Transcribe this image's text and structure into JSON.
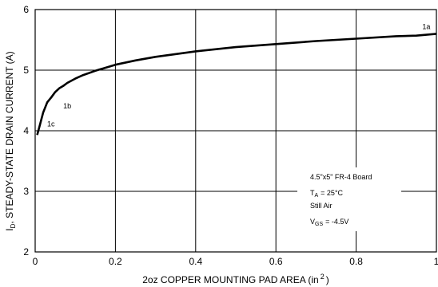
{
  "chart_data": {
    "type": "line",
    "title": "",
    "xlabel": "2oz COPPER MOUNTING PAD AREA (in",
    "xlabel_sup": "2",
    "xlabel_end": ")",
    "ylabel_pre": "I",
    "ylabel_sub": "D",
    "ylabel_rest": ", STEADY-STATE DRAIN CURRENT (A)",
    "xlim": [
      0,
      1
    ],
    "ylim": [
      2,
      6
    ],
    "x_ticks": [
      "0",
      "0.2",
      "0.4",
      "0.6",
      "0.8",
      "1"
    ],
    "y_ticks": [
      "2",
      "3",
      "4",
      "5",
      "6"
    ],
    "grid": true,
    "series": [
      {
        "x": [
          0.005,
          0.01,
          0.02,
          0.03,
          0.04,
          0.05,
          0.06,
          0.07,
          0.08,
          0.1,
          0.12,
          0.15,
          0.2,
          0.25,
          0.3,
          0.4,
          0.5,
          0.6,
          0.7,
          0.8,
          0.9,
          0.95,
          1.0
        ],
        "y": [
          3.93,
          4.05,
          4.3,
          4.47,
          4.55,
          4.64,
          4.7,
          4.74,
          4.79,
          4.86,
          4.92,
          4.99,
          5.09,
          5.16,
          5.22,
          5.31,
          5.38,
          5.43,
          5.48,
          5.52,
          5.56,
          5.57,
          5.6
        ]
      }
    ],
    "annotations": [
      {
        "text": "1a",
        "x": 0.965,
        "y": 5.68
      },
      {
        "text": "1b",
        "x": 0.07,
        "y": 4.37
      },
      {
        "text": "1c",
        "x": 0.03,
        "y": 4.07
      }
    ],
    "legend_box": {
      "line1": "4.5\"x5\" FR-4 Board",
      "ta_pre": "T",
      "ta_sub": "A",
      "ta_post": "= 25°C",
      "line3": "Still Air",
      "vgs_pre": "V",
      "vgs_sub": "GS",
      "vgs_post": "= -4.5V"
    }
  }
}
